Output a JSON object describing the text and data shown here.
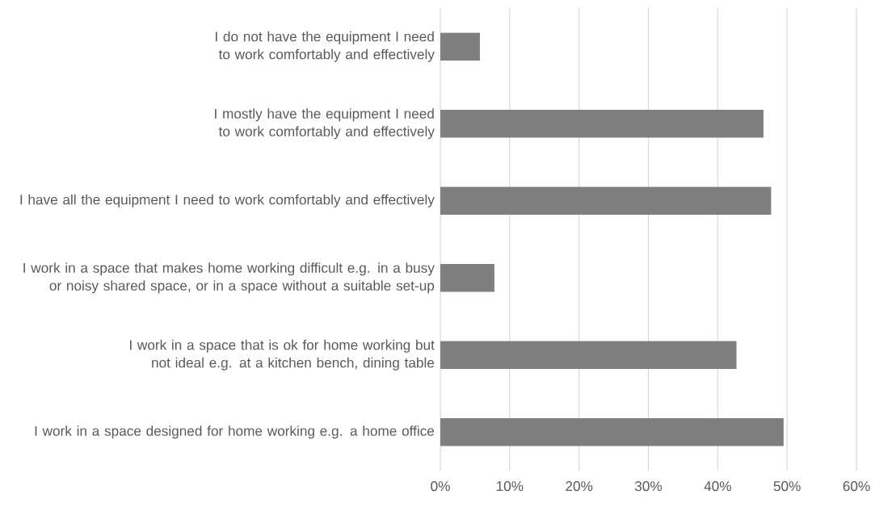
{
  "chart_data": {
    "type": "bar",
    "orientation": "horizontal",
    "categories": [
      "I do not have the equipment I need to work comfortably and effectively",
      "I mostly have the equipment I need to work comfortably and effectively",
      "I have all the equipment I need to work comfortably and effectively",
      "I work in a space that makes home working difficult e.g. in a busy or noisy shared space, or in a space without a suitable set-up",
      "I work in a space that is ok for home working but not ideal e.g. at a kitchen bench, dining table",
      "I work in a space designed for home working e.g. a home office"
    ],
    "values": [
      5.7,
      46.6,
      47.7,
      7.8,
      42.7,
      49.5
    ],
    "color": "#7f7f7f",
    "xlim": [
      0,
      60
    ],
    "xticks": [
      {
        "value": 0,
        "label": "0%"
      },
      {
        "value": 10,
        "label": "10%"
      },
      {
        "value": 20,
        "label": "20%"
      },
      {
        "value": 30,
        "label": "30%"
      },
      {
        "value": 40,
        "label": "40%"
      },
      {
        "value": 50,
        "label": "50%"
      },
      {
        "value": 60,
        "label": "60%"
      }
    ],
    "grid": "x"
  }
}
